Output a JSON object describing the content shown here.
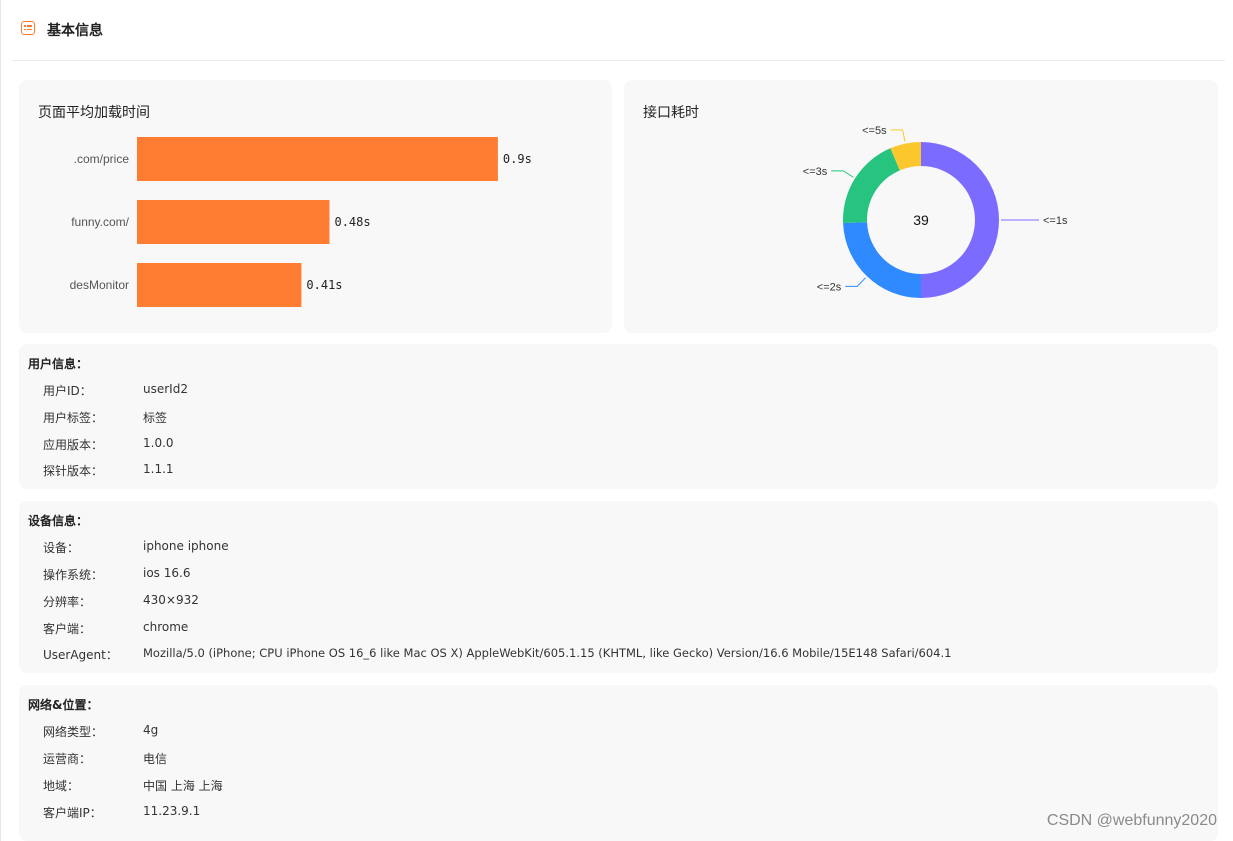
{
  "header": {
    "title": "基本信息",
    "icon": "list-icon",
    "accent": "#ff7a2f"
  },
  "load_time_chart": {
    "title": "页面平均加载时间",
    "chart_data": {
      "type": "bar",
      "orientation": "horizontal",
      "categories": [
        ".com/price",
        "funny.com/",
        "desMonitor"
      ],
      "values": [
        0.9,
        0.48,
        0.41
      ],
      "value_labels": [
        "0.9s",
        "0.48s",
        "0.41s"
      ],
      "unit": "s",
      "color": "#ff7d33",
      "xlim": [
        0,
        1
      ]
    }
  },
  "api_time_chart": {
    "title": "接口耗时",
    "chart_data": {
      "type": "pie",
      "variant": "donut",
      "center_label": "39",
      "slices": [
        {
          "label": "<=1s",
          "value": 19.5,
          "color": "#7b6cff"
        },
        {
          "label": "<=2s",
          "value": 9.5,
          "color": "#2f8aff"
        },
        {
          "label": "<=3s",
          "value": 7.5,
          "color": "#27c47f"
        },
        {
          "label": "<=5s",
          "value": 2.5,
          "color": "#fcc72d"
        }
      ]
    }
  },
  "user_info": {
    "title": "用户信息：",
    "rows": [
      {
        "label": "用户ID：",
        "value": "userId2"
      },
      {
        "label": "用户标签：",
        "value": "标签"
      },
      {
        "label": "应用版本：",
        "value": "1.0.0"
      },
      {
        "label": "探针版本：",
        "value": "1.1.1"
      }
    ]
  },
  "device_info": {
    "title": "设备信息：",
    "rows": [
      {
        "label": "设备：",
        "value": "iphone iphone"
      },
      {
        "label": "操作系统：",
        "value": "ios 16.6"
      },
      {
        "label": "分辨率：",
        "value": "430×932"
      },
      {
        "label": "客户端：",
        "value": "chrome"
      },
      {
        "label": "UserAgent：",
        "value": "Mozilla/5.0 (iPhone; CPU iPhone OS 16_6 like Mac OS X) AppleWebKit/605.1.15 (KHTML, like Gecko) Version/16.6 Mobile/15E148 Safari/604.1"
      }
    ]
  },
  "network_info": {
    "title": "网络&位置：",
    "rows": [
      {
        "label": "网络类型：",
        "value": "4g"
      },
      {
        "label": "运营商：",
        "value": "电信"
      },
      {
        "label": "地域：",
        "value": "中国 上海 上海"
      },
      {
        "label": "客户端IP：",
        "value": "11.23.9.1"
      }
    ]
  },
  "watermark": "CSDN @webfunny2020"
}
